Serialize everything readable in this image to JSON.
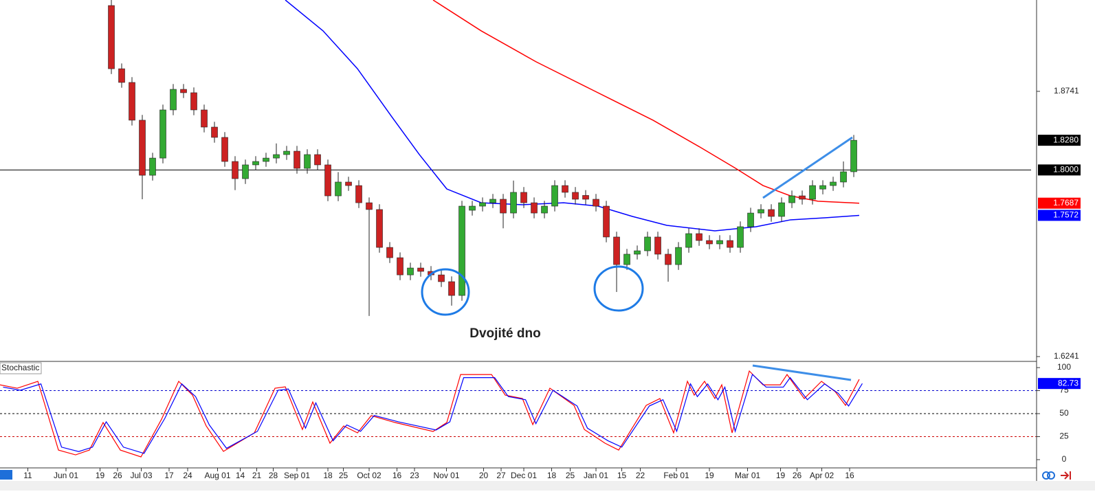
{
  "chart_data": [
    {
      "type": "candlestick",
      "annotation": "Dvojité dno",
      "up_color": "#33aa33",
      "down_color": "#cc2222",
      "xlim": [
        -10.8,
        89.73
      ],
      "ylim": [
        1.6202,
        1.9602
      ],
      "yticks": [
        {
          "value": 1.6241,
          "label": "1.6241"
        },
        {
          "value": 1.8741,
          "label": "1.8741"
        }
      ],
      "hline": {
        "value": 1.8,
        "label": "1.8000",
        "color": "#000000"
      },
      "last_label": "1.8280",
      "candles": [
        [
          1.955,
          1.965,
          1.8904,
          1.8954
        ],
        [
          1.8954,
          1.9004,
          1.8775,
          1.8825
        ],
        [
          1.8825,
          1.8875,
          1.8419,
          1.8469
        ],
        [
          1.8469,
          1.8519,
          1.7724,
          1.795
        ],
        [
          1.795,
          1.8162,
          1.79,
          1.8112
        ],
        [
          1.8112,
          1.8616,
          1.8062,
          1.8566
        ],
        [
          1.8566,
          1.881,
          1.8516,
          1.876
        ],
        [
          1.876,
          1.881,
          1.8678,
          1.8728
        ],
        [
          1.8728,
          1.8778,
          1.8516,
          1.8566
        ],
        [
          1.8566,
          1.8616,
          1.8354,
          1.8404
        ],
        [
          1.8404,
          1.8454,
          1.8257,
          1.8307
        ],
        [
          1.8307,
          1.8357,
          1.803,
          1.808
        ],
        [
          1.808,
          1.813,
          1.781,
          1.7918
        ],
        [
          1.7918,
          1.8098,
          1.7868,
          1.8048
        ],
        [
          1.8048,
          1.813,
          1.7998,
          1.808
        ],
        [
          1.808,
          1.8162,
          1.803,
          1.8112
        ],
        [
          1.8112,
          1.825,
          1.8062,
          1.8145
        ],
        [
          1.8145,
          1.8227,
          1.8095,
          1.8177
        ],
        [
          1.8177,
          1.8227,
          1.7965,
          1.8015
        ],
        [
          1.8015,
          1.8195,
          1.7965,
          1.8145
        ],
        [
          1.8145,
          1.8195,
          1.7998,
          1.8048
        ],
        [
          1.8048,
          1.8098,
          1.7706,
          1.7756
        ],
        [
          1.7756,
          1.798,
          1.7706,
          1.7886
        ],
        [
          1.7886,
          1.7936,
          1.7803,
          1.7853
        ],
        [
          1.7853,
          1.7903,
          1.7641,
          1.7691
        ],
        [
          1.7691,
          1.7741,
          1.6624,
          1.7627
        ],
        [
          1.7627,
          1.7677,
          1.722,
          1.727
        ],
        [
          1.727,
          1.732,
          1.7123,
          1.7173
        ],
        [
          1.7173,
          1.7223,
          1.6961,
          1.7011
        ],
        [
          1.7011,
          1.7126,
          1.6961,
          1.7076
        ],
        [
          1.7076,
          1.7126,
          1.6994,
          1.7044
        ],
        [
          1.7044,
          1.7094,
          1.6961,
          1.7011
        ],
        [
          1.7011,
          1.7061,
          1.6897,
          1.6947
        ],
        [
          1.6947,
          1.6997,
          1.6721,
          1.6817
        ],
        [
          1.6817,
          1.7709,
          1.6767,
          1.7659
        ],
        [
          1.762,
          1.7709,
          1.757,
          1.7659
        ],
        [
          1.7659,
          1.7741,
          1.7609,
          1.7691
        ],
        [
          1.7691,
          1.7774,
          1.7641,
          1.7724
        ],
        [
          1.7724,
          1.7774,
          1.745,
          1.7594
        ],
        [
          1.7594,
          1.79,
          1.7544,
          1.7789
        ],
        [
          1.7789,
          1.7839,
          1.7641,
          1.7691
        ],
        [
          1.7691,
          1.7741,
          1.7544,
          1.7594
        ],
        [
          1.7594,
          1.7709,
          1.7544,
          1.7659
        ],
        [
          1.7659,
          1.7903,
          1.7609,
          1.7853
        ],
        [
          1.7853,
          1.7903,
          1.7739,
          1.7789
        ],
        [
          1.7789,
          1.7839,
          1.7674,
          1.7724
        ],
        [
          1.776,
          1.781,
          1.7674,
          1.7724
        ],
        [
          1.7724,
          1.7774,
          1.7609,
          1.7659
        ],
        [
          1.7659,
          1.7709,
          1.7318,
          1.7368
        ],
        [
          1.7368,
          1.7418,
          1.685,
          1.7108
        ],
        [
          1.7108,
          1.7256,
          1.7058,
          1.7206
        ],
        [
          1.7206,
          1.7288,
          1.7156,
          1.7238
        ],
        [
          1.7238,
          1.7418,
          1.7188,
          1.7368
        ],
        [
          1.7368,
          1.7418,
          1.7156,
          1.7206
        ],
        [
          1.7206,
          1.7256,
          1.6947,
          1.7108
        ],
        [
          1.7108,
          1.732,
          1.7058,
          1.727
        ],
        [
          1.727,
          1.745,
          1.722,
          1.74
        ],
        [
          1.74,
          1.745,
          1.7285,
          1.7335
        ],
        [
          1.7335,
          1.7385,
          1.7253,
          1.7303
        ],
        [
          1.7303,
          1.7385,
          1.7253,
          1.7335
        ],
        [
          1.7335,
          1.7385,
          1.722,
          1.727
        ],
        [
          1.727,
          1.7515,
          1.722,
          1.7465
        ],
        [
          1.7465,
          1.7644,
          1.7415,
          1.7594
        ],
        [
          1.7594,
          1.7677,
          1.7544,
          1.7627
        ],
        [
          1.7627,
          1.7677,
          1.7512,
          1.7562
        ],
        [
          1.7562,
          1.7741,
          1.7512,
          1.7691
        ],
        [
          1.7691,
          1.7806,
          1.7641,
          1.7756
        ],
        [
          1.7756,
          1.7806,
          1.7674,
          1.7724
        ],
        [
          1.7724,
          1.7903,
          1.7674,
          1.7853
        ],
        [
          1.782,
          1.7903,
          1.777,
          1.7853
        ],
        [
          1.7853,
          1.7936,
          1.7803,
          1.7886
        ],
        [
          1.7886,
          1.808,
          1.7836,
          1.7983
        ],
        [
          1.7983,
          1.833,
          1.7933,
          1.828
        ]
      ],
      "lines": [
        {
          "color": "#ff0000",
          "last_label": "1.7687",
          "x": [
            31.2,
            35.87,
            41.2,
            46.53,
            52.53,
            57.2,
            60.53,
            63.2,
            65.87,
            68.53,
            72.53
          ],
          "values": [
            1.9602,
            1.9311,
            1.9019,
            1.876,
            1.8469,
            1.8209,
            1.8016,
            1.7853,
            1.7756,
            1.7705,
            1.7687
          ]
        },
        {
          "color": "#0000ff",
          "last_label": "1.7572",
          "x": [
            16.87,
            20.53,
            23.87,
            27.2,
            29.87,
            32.53,
            35.87,
            39.87,
            43.87,
            47.2,
            50.53,
            53.87,
            58.53,
            62.53,
            65.87,
            69.2,
            72.53
          ],
          "values": [
            1.9602,
            1.9311,
            1.8954,
            1.8501,
            1.8145,
            1.7821,
            1.7691,
            1.7672,
            1.7691,
            1.7659,
            1.7562,
            1.7478,
            1.7426,
            1.7465,
            1.753,
            1.7549,
            1.7572
          ]
        }
      ]
    },
    {
      "type": "line",
      "title": "Stochastic",
      "xlim": [
        -10.8,
        89.73
      ],
      "ylim": [
        -8.2,
        106
      ],
      "yticks": [
        0,
        25,
        50,
        75,
        100
      ],
      "levels": [
        {
          "value": 75,
          "color": "#0000cc"
        },
        {
          "value": 50,
          "color": "#000000"
        },
        {
          "value": 25,
          "color": "#cc0000"
        }
      ],
      "xticks": [
        {
          "value": -8.1,
          "label": "11"
        },
        {
          "value": -4.4,
          "label": "Jun 01"
        },
        {
          "value": -1.1,
          "label": "19"
        },
        {
          "value": 0.6,
          "label": "26"
        },
        {
          "value": 2.9,
          "label": "Jul 03"
        },
        {
          "value": 5.6,
          "label": "17"
        },
        {
          "value": 7.4,
          "label": "24"
        },
        {
          "value": 10.3,
          "label": "Aug 01"
        },
        {
          "value": 12.5,
          "label": "14"
        },
        {
          "value": 14.1,
          "label": "21"
        },
        {
          "value": 15.7,
          "label": "28"
        },
        {
          "value": 18,
          "label": "Sep 01"
        },
        {
          "value": 21,
          "label": "18"
        },
        {
          "value": 22.5,
          "label": "25"
        },
        {
          "value": 25,
          "label": "Oct 02"
        },
        {
          "value": 27.7,
          "label": "16"
        },
        {
          "value": 29.4,
          "label": "23"
        },
        {
          "value": 32.5,
          "label": "Nov 01"
        },
        {
          "value": 36.1,
          "label": "20"
        },
        {
          "value": 37.8,
          "label": "27"
        },
        {
          "value": 40,
          "label": "Dec 01"
        },
        {
          "value": 42.7,
          "label": "18"
        },
        {
          "value": 44.5,
          "label": "25"
        },
        {
          "value": 47,
          "label": "Jan 01"
        },
        {
          "value": 49.5,
          "label": "15"
        },
        {
          "value": 51.3,
          "label": "22"
        },
        {
          "value": 54.8,
          "label": "Feb 01"
        },
        {
          "value": 58,
          "label": "19"
        },
        {
          "value": 61.7,
          "label": "Mar 01"
        },
        {
          "value": 64.9,
          "label": "19"
        },
        {
          "value": 66.5,
          "label": "26"
        },
        {
          "value": 68.9,
          "label": "Apr 02"
        },
        {
          "value": 71.6,
          "label": "16"
        }
      ],
      "series": [
        {
          "color": "#ff0000",
          "x": [
            -10.8,
            -9.13,
            -7.13,
            -5.13,
            -3.47,
            -2.13,
            -0.8,
            0.87,
            2.87,
            4.87,
            6.53,
            7.87,
            9.2,
            10.87,
            13.87,
            15.87,
            16.87,
            18.53,
            19.53,
            21.2,
            22.53,
            23.87,
            25.2,
            27.53,
            31.2,
            32.53,
            33.87,
            36.87,
            38.2,
            39.87,
            40.87,
            42.53,
            44.87,
            45.87,
            47.87,
            49.2,
            51.87,
            53.2,
            54.53,
            55.87,
            56.53,
            57.53,
            58.53,
            59.2,
            60.2,
            61.87,
            63.2,
            64.87,
            65.53,
            67.2,
            68.87,
            70.2,
            71.2,
            72.53
          ],
          "values": [
            81.3,
            77.6,
            85.1,
            10.4,
            5.2,
            10.4,
            40.3,
            10.4,
            3.0,
            44.0,
            85.1,
            70.1,
            36.6,
            9.0,
            29.1,
            77.6,
            79.1,
            32.8,
            62.7,
            17.9,
            36.6,
            29.1,
            47.8,
            40.3,
            30.6,
            40.3,
            92.5,
            92.5,
            70.1,
            66.4,
            38.1,
            77.6,
            59.0,
            32.8,
            17.9,
            10.4,
            59.0,
            66.4,
            29.1,
            85.1,
            70.1,
            85.1,
            66.4,
            81.3,
            29.1,
            96.3,
            81.3,
            81.3,
            92.5,
            66.4,
            85.1,
            73.9,
            59.0,
            87.3
          ]
        },
        {
          "color": "#0000ff",
          "last_label": "82.73",
          "x": [
            -10.5,
            -8.83,
            -6.83,
            -4.83,
            -3.17,
            -1.83,
            -0.5,
            1.17,
            3.17,
            5.17,
            6.83,
            8.17,
            9.5,
            11.17,
            14.17,
            16.17,
            17.17,
            18.83,
            19.83,
            21.5,
            22.83,
            24.17,
            25.5,
            27.83,
            31.5,
            32.83,
            34.17,
            37.17,
            38.5,
            40.17,
            41.17,
            42.83,
            45.17,
            46.17,
            48.17,
            49.5,
            52.17,
            53.5,
            54.83,
            56.17,
            56.83,
            57.83,
            58.83,
            59.5,
            60.5,
            62.17,
            63.5,
            65.17,
            65.83,
            67.5,
            69.17,
            70.5,
            71.5,
            72.83
          ],
          "values": [
            78.8,
            75.4,
            82.3,
            13.6,
            8.8,
            13.6,
            41.1,
            13.6,
            6.8,
            44.5,
            82.3,
            68.5,
            37.7,
            12.3,
            30.8,
            75.4,
            76.8,
            34.2,
            61.7,
            20.5,
            37.7,
            30.8,
            48.0,
            41.1,
            32.2,
            41.1,
            89.1,
            89.1,
            68.5,
            65.1,
            39.1,
            75.4,
            58.3,
            34.2,
            20.5,
            13.6,
            58.3,
            65.1,
            30.8,
            82.3,
            68.5,
            82.3,
            65.1,
            78.8,
            30.8,
            92.6,
            78.8,
            78.8,
            89.1,
            65.1,
            82.3,
            72.0,
            58.3,
            82.73
          ]
        }
      ]
    }
  ]
}
